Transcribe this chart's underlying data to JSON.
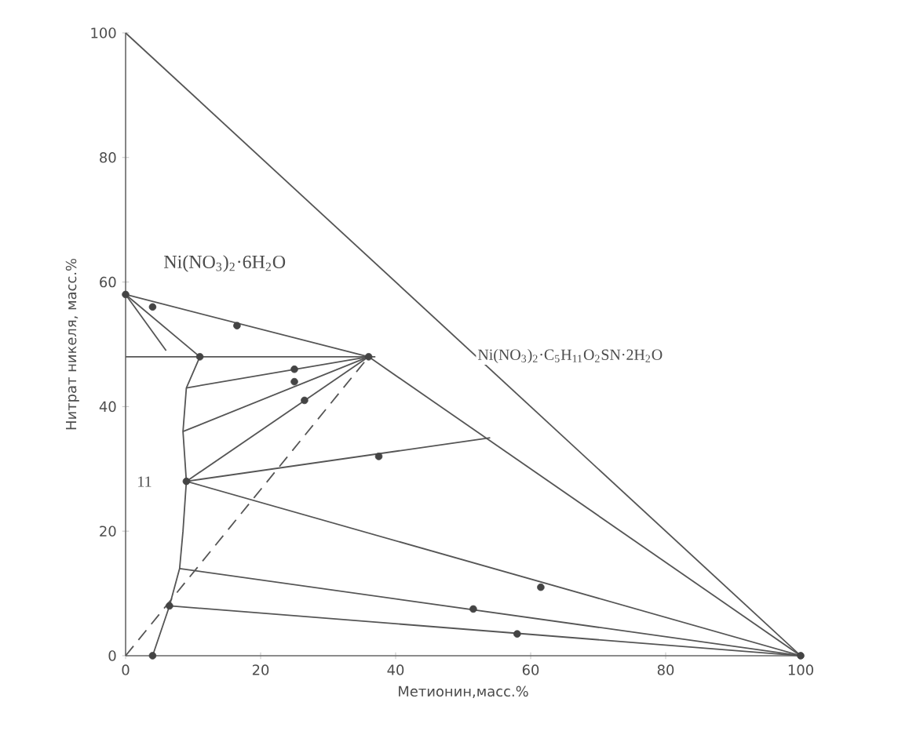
{
  "chart_data": {
    "type": "line",
    "xlabel": "Метионин,масс.%",
    "ylabel": "Нитрат никеля, масс.%",
    "xlim": [
      0,
      100
    ],
    "ylim": [
      0,
      100
    ],
    "xticks": [
      0,
      20,
      40,
      60,
      80,
      100
    ],
    "yticks": [
      0,
      20,
      40,
      60,
      80,
      100
    ],
    "series": [
      {
        "type": "line",
        "color": "#555555",
        "x": [
          0,
          100
        ],
        "values": [
          100,
          0
        ]
      },
      {
        "type": "line",
        "color": "#555555",
        "x": [
          36,
          100
        ],
        "values": [
          48,
          0
        ]
      },
      {
        "type": "line",
        "color": "#555555",
        "x": [
          0,
          36
        ],
        "values": [
          58,
          48
        ]
      },
      {
        "type": "line",
        "color": "#555555",
        "x": [
          0,
          37
        ],
        "values": [
          48,
          48
        ]
      },
      {
        "type": "line",
        "color": "#555555",
        "x": [
          4,
          6.5,
          8,
          8.5,
          9,
          8.5,
          9,
          11
        ],
        "values": [
          0,
          8,
          14,
          20,
          28,
          36,
          43,
          48
        ]
      },
      {
        "type": "line",
        "color": "#555555",
        "x": [
          0,
          11
        ],
        "values": [
          58,
          48
        ]
      },
      {
        "type": "line",
        "color": "#555555",
        "x": [
          0,
          6
        ],
        "values": [
          58,
          49
        ]
      },
      {
        "type": "line",
        "color": "#555555",
        "x": [
          9,
          36
        ],
        "values": [
          43,
          48
        ]
      },
      {
        "type": "line",
        "color": "#555555",
        "x": [
          8.5,
          36
        ],
        "values": [
          36,
          48
        ]
      },
      {
        "type": "line",
        "color": "#555555",
        "x": [
          9,
          36
        ],
        "values": [
          28,
          48
        ]
      },
      {
        "type": "line",
        "color": "#555555",
        "x": [
          9,
          100
        ],
        "values": [
          28,
          0
        ]
      },
      {
        "type": "line",
        "color": "#555555",
        "x": [
          9,
          54
        ],
        "values": [
          28,
          35
        ]
      },
      {
        "type": "line",
        "color": "#555555",
        "x": [
          8,
          100
        ],
        "values": [
          14,
          0
        ]
      },
      {
        "type": "line",
        "color": "#555555",
        "x": [
          6.5,
          100
        ],
        "values": [
          8,
          0
        ]
      },
      {
        "type": "line",
        "color": "#555555",
        "line_style": "dashed",
        "x": [
          0,
          36
        ],
        "values": [
          0,
          48
        ]
      },
      {
        "type": "scatter",
        "color": "#444444",
        "marker": "circle",
        "x": [
          0,
          4,
          16.5,
          11,
          25,
          25,
          26.5,
          9,
          37.5,
          61.5,
          51.5,
          58,
          6.5,
          4,
          100,
          36
        ],
        "values": [
          58,
          56,
          53,
          48,
          46,
          44,
          41,
          28,
          32,
          11,
          7.5,
          3.5,
          8,
          0,
          0,
          48
        ]
      }
    ],
    "annotations": [
      "Ni(NO$_{3}$)$_{2}$·6H$_{2}$O",
      "Ni(NO$_{3}$)$_{2}$·C$_{5}$H$_{11}$O$_{2}$SN·2H$_{2}$O",
      "11"
    ]
  }
}
